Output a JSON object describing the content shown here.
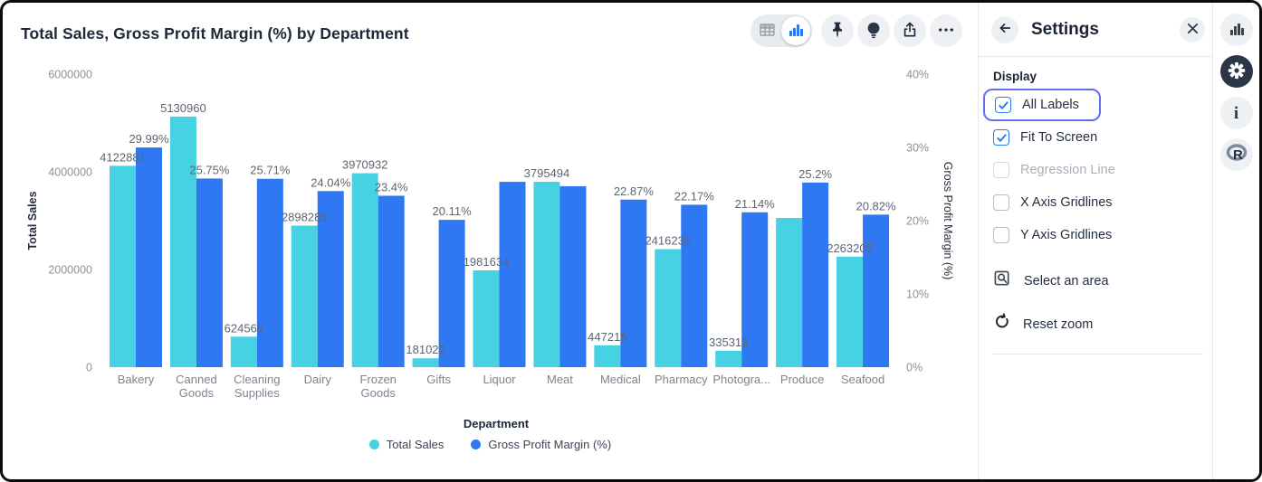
{
  "chart_data": {
    "type": "bar",
    "title": "Total Sales, Gross Profit Margin (%) by Department",
    "xlabel": "Department",
    "ylabel_left": "Total Sales",
    "ylabel_right": "Gross Profit Margin (%)",
    "grid": false,
    "legend_position": "bottom",
    "ylim_left": [
      0,
      6000000
    ],
    "ylim_right": [
      0,
      40
    ],
    "left_ticks": [
      "0",
      "2000000",
      "4000000",
      "6000000"
    ],
    "right_ticks": [
      "0%",
      "10%",
      "20%",
      "30%",
      "40%"
    ],
    "categories": [
      "Bakery",
      "Canned Goods",
      "Cleaning Supplies",
      "Dairy",
      "Frozen Goods",
      "Gifts",
      "Liquor",
      "Meat",
      "Medical",
      "Pharmacy",
      "Photogra...",
      "Produce",
      "Seafood"
    ],
    "category_wrap": {
      "Canned Goods": [
        "Canned",
        "Goods"
      ],
      "Cleaning Supplies": [
        "Cleaning",
        "Supplies"
      ],
      "Frozen Goods": [
        "Frozen",
        "Goods"
      ]
    },
    "series": [
      {
        "name": "Total Sales",
        "axis": "left",
        "color": "#46d2e2",
        "values": [
          4122881,
          5130960,
          624568,
          2898285,
          3970932,
          181022,
          1981634,
          3795494,
          447215,
          2416230,
          335312,
          3055000,
          2263205
        ],
        "labels": [
          "4122881",
          "5130960",
          "624568",
          "2898285",
          "3970932",
          "181022",
          "1981634",
          "3795494",
          "447215",
          "2416230",
          "335312",
          null,
          "2263205"
        ]
      },
      {
        "name": "Gross Profit Margin (%)",
        "axis": "right",
        "color": "#2e78f3",
        "values": [
          29.99,
          25.75,
          25.71,
          24.04,
          23.4,
          20.11,
          25.3,
          24.7,
          22.87,
          22.17,
          21.14,
          25.2,
          20.82
        ],
        "labels": [
          "29.99%",
          "25.75%",
          "25.71%",
          "24.04%",
          "23.4%",
          "20.11%",
          null,
          null,
          "22.87%",
          "22.17%",
          "21.14%",
          "25.2%",
          "20.82%"
        ]
      }
    ]
  },
  "toolbar": {
    "view_toggle": {
      "options": [
        "table-view",
        "chart-view"
      ],
      "active": "chart-view"
    },
    "buttons": [
      {
        "name": "pin",
        "icon": "pushpin-icon"
      },
      {
        "name": "insights",
        "icon": "lightbulb-icon"
      },
      {
        "name": "share",
        "icon": "share-icon"
      },
      {
        "name": "more",
        "icon": "ellipsis-icon"
      }
    ]
  },
  "settings_panel": {
    "title": "Settings",
    "section": "Display",
    "checkboxes": [
      {
        "label": "All Labels",
        "checked": true,
        "disabled": false,
        "focused": true
      },
      {
        "label": "Fit To Screen",
        "checked": true,
        "disabled": false,
        "focused": false
      },
      {
        "label": "Regression Line",
        "checked": false,
        "disabled": true,
        "focused": false
      },
      {
        "label": "X Axis Gridlines",
        "checked": false,
        "disabled": false,
        "focused": false
      },
      {
        "label": "Y Axis Gridlines",
        "checked": false,
        "disabled": false,
        "focused": false
      }
    ],
    "actions": [
      {
        "label": "Select an area",
        "icon": "area-select-icon"
      },
      {
        "label": "Reset zoom",
        "icon": "reset-zoom-icon"
      }
    ]
  },
  "right_rail": [
    {
      "icon": "bar-chart-icon",
      "active": false
    },
    {
      "icon": "gear-icon",
      "active": true
    },
    {
      "icon": "info-icon",
      "active": false
    },
    {
      "icon": "r-logo-icon",
      "active": false
    }
  ],
  "colors": {
    "series_cyan": "#46d2e2",
    "series_blue": "#2e78f3",
    "checkbox_blue": "#2b7bf3",
    "focus_ring": "#666df2",
    "dark_text": "#1d2839",
    "tick_text": "#8a929b",
    "value_label_text": "#5c6672"
  }
}
